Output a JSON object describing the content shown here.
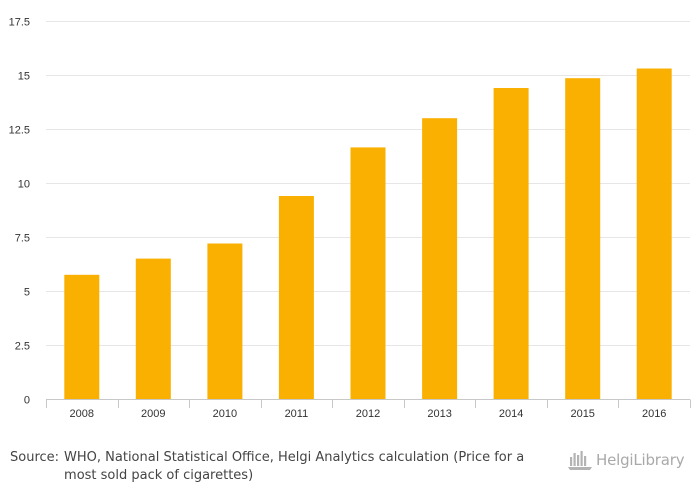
{
  "chart_data": {
    "type": "bar",
    "categories": [
      "2008",
      "2009",
      "2010",
      "2011",
      "2012",
      "2013",
      "2014",
      "2015",
      "2016"
    ],
    "values": [
      5.75,
      6.5,
      7.2,
      9.4,
      11.65,
      13.0,
      14.4,
      14.85,
      15.3
    ],
    "yticks": [
      "0",
      "2.5",
      "5",
      "7.5",
      "10",
      "12.5",
      "15",
      "17.5"
    ],
    "ylim": [
      0,
      17.5
    ],
    "title": "",
    "xlabel": "",
    "ylabel": "",
    "grid": true,
    "bar_color": "#f9b000"
  },
  "footer": {
    "source_label": "Source:",
    "source_text": "WHO, National Statistical Office, Helgi Analytics calculation (Price for a most sold pack of cigarettes)"
  },
  "logo": {
    "text": "HelgiLibrary",
    "icon": "library-logo-icon",
    "color": "#a9a9a9"
  }
}
